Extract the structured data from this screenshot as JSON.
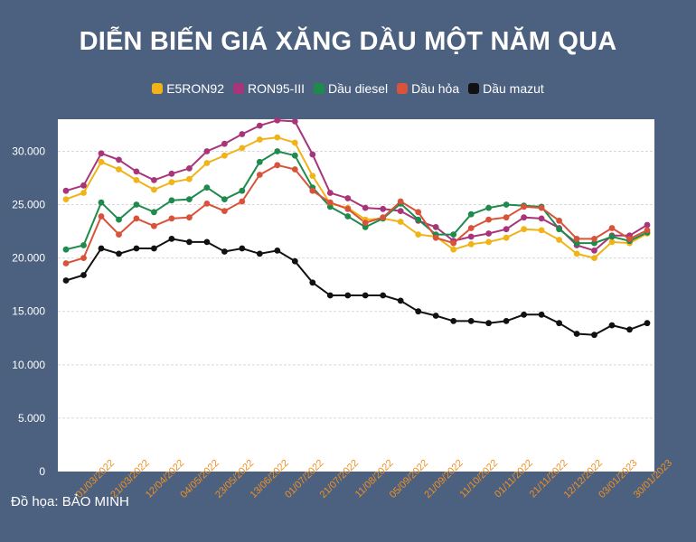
{
  "chart_data": {
    "type": "line",
    "title": "DIỄN BIẾN GIÁ XĂNG DẦU MỘT NĂM QUA",
    "xlabel": "",
    "ylabel": "",
    "ylim": [
      0,
      33000
    ],
    "yticks": [
      0,
      5000,
      10000,
      15000,
      20000,
      25000,
      30000
    ],
    "ytick_labels": [
      "0",
      "5.000",
      "10.000",
      "15.000",
      "20.000",
      "25.000",
      "30.000"
    ],
    "xtick_labels": [
      "01/03/2022",
      "21/03/2022",
      "12/04/2022",
      "04/05/2022",
      "23/05/2022",
      "13/06/2022",
      "01/07/2022",
      "21/07/2022",
      "11/08/2022",
      "05/09/2022",
      "21/09/2022",
      "11/10/2022",
      "01/11/2022",
      "21/11/2022",
      "12/12/2022",
      "03/01/2023",
      "30/01/2023"
    ],
    "grid": "horizontal",
    "legend": "top-center",
    "series": [
      {
        "name": "E5RON92",
        "color": "#f0b419",
        "values": [
          25500,
          26100,
          29000,
          28300,
          27300,
          26400,
          27100,
          27400,
          28900,
          29600,
          30300,
          31100,
          31300,
          30800,
          27700,
          25100,
          24700,
          23600,
          23700,
          23400,
          22200,
          22000,
          20800,
          21300,
          21500,
          21900,
          22700,
          22600,
          21700,
          20400,
          20000,
          21500,
          21400,
          22300
        ]
      },
      {
        "name": "RON95-III",
        "color": "#a8357a",
        "values": [
          26300,
          26800,
          29800,
          29200,
          28100,
          27300,
          27900,
          28400,
          30000,
          30700,
          31600,
          32400,
          32900,
          32800,
          29700,
          26100,
          25600,
          24700,
          24600,
          24400,
          23500,
          22900,
          21600,
          22000,
          22300,
          22700,
          23800,
          23700,
          22800,
          21200,
          20700,
          22100,
          22100,
          23100
        ]
      },
      {
        "name": "Dầu diesel",
        "color": "#1e8a4c",
        "values": [
          20800,
          21200,
          25200,
          23600,
          25000,
          24300,
          25400,
          25500,
          26600,
          25500,
          26300,
          29000,
          30000,
          29600,
          26600,
          24800,
          23900,
          22900,
          23700,
          25100,
          23600,
          22200,
          22200,
          24100,
          24700,
          25000,
          24900,
          24800,
          22700,
          21400,
          21400,
          22000,
          21600,
          22400
        ]
      },
      {
        "name": "Dầu hỏa",
        "color": "#d9533b",
        "values": [
          19500,
          20000,
          23900,
          22200,
          23700,
          23000,
          23700,
          23800,
          25100,
          24400,
          25300,
          27800,
          28700,
          28300,
          26300,
          25200,
          24600,
          23300,
          23800,
          25300,
          24300,
          21900,
          21400,
          22800,
          23600,
          23800,
          24800,
          24700,
          23500,
          21800,
          21800,
          22800,
          21800,
          22600
        ]
      },
      {
        "name": "Dầu mazut",
        "color": "#111111",
        "values": [
          17900,
          18400,
          20900,
          20400,
          20900,
          20900,
          21800,
          21500,
          21500,
          20600,
          20900,
          20400,
          20700,
          19700,
          17700,
          16500,
          16500,
          16500,
          16500,
          16000,
          15000,
          14600,
          14100,
          14100,
          13900,
          14100,
          14700,
          14700,
          13900,
          12900,
          12800,
          13700,
          13300,
          13900
        ]
      }
    ]
  },
  "credit": "Đồ họa: BẢO MINH"
}
